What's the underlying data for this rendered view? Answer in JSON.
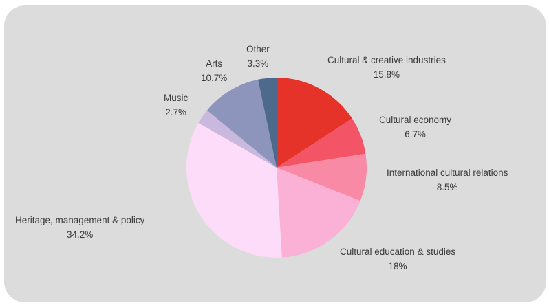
{
  "chart_data": {
    "type": "pie",
    "title": "",
    "slices": [
      {
        "label": "Cultural & creative industries",
        "value": 15.8,
        "value_label": "15.8%",
        "color": "#e5332a"
      },
      {
        "label": "Cultural economy",
        "value": 6.7,
        "value_label": "6.7%",
        "color": "#f35567"
      },
      {
        "label": "International cultural relations",
        "value": 8.5,
        "value_label": "8.5%",
        "color": "#f98aa6"
      },
      {
        "label": "Cultural education & studies",
        "value": 18,
        "value_label": "18%",
        "color": "#fbb0d6"
      },
      {
        "label": "Heritage, management & policy",
        "value": 34.2,
        "value_label": "34.2%",
        "color": "#fddcfa"
      },
      {
        "label": "Music",
        "value": 2.7,
        "value_label": "2.7%",
        "color": "#c9b9de"
      },
      {
        "label": "Arts",
        "value": 10.7,
        "value_label": "10.7%",
        "color": "#8d95bc"
      },
      {
        "label": "Other",
        "value": 3.3,
        "value_label": "3.3%",
        "color": "#4d6a8c"
      }
    ],
    "start_angle": "12 o'clock",
    "direction": "clockwise",
    "legend": "none"
  }
}
